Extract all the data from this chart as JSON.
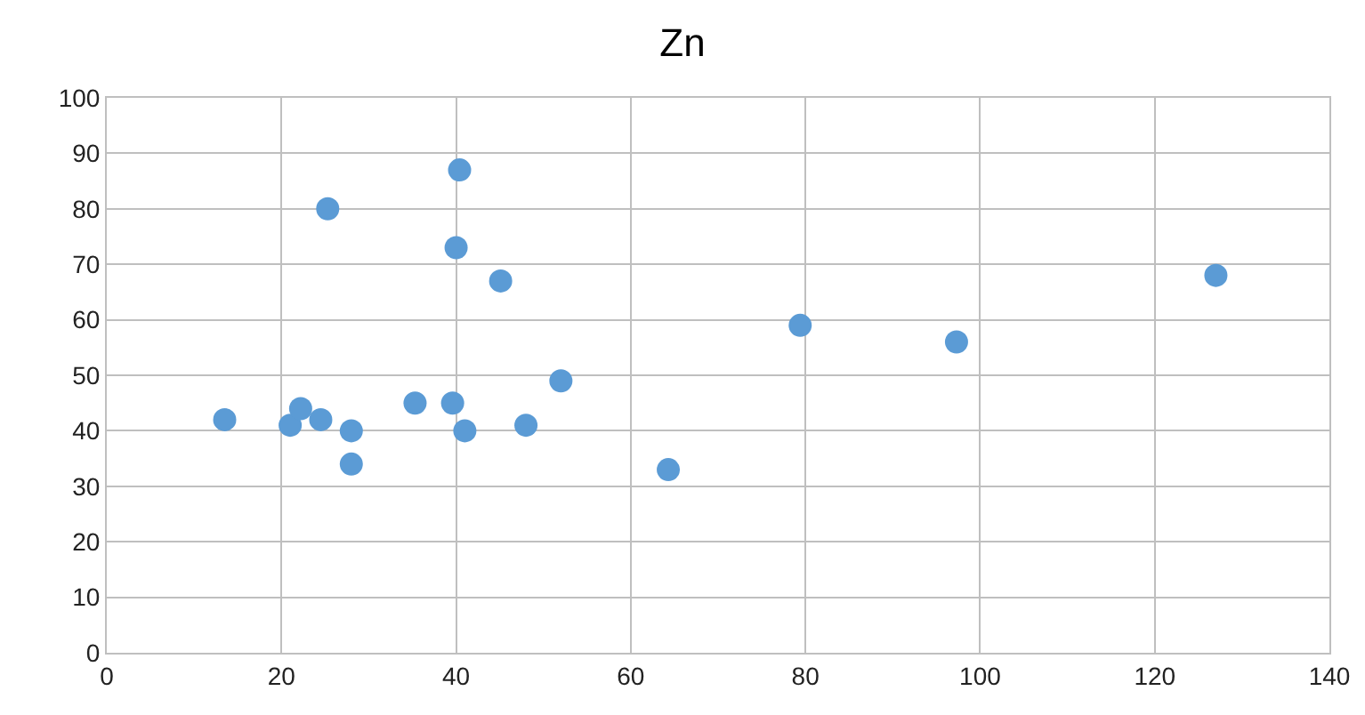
{
  "chart_data": {
    "type": "scatter",
    "title": "Zn",
    "x": [
      13.5,
      21,
      22.2,
      24.5,
      25.3,
      28,
      28,
      35.3,
      39.6,
      40.4,
      40,
      41,
      45.1,
      48,
      52,
      64.3,
      79.4,
      97.3,
      127
    ],
    "values": [
      42,
      41,
      44,
      42,
      80,
      40,
      34,
      45,
      45,
      87,
      73,
      40,
      67,
      41,
      49,
      33,
      59,
      56,
      68
    ],
    "color": "#5b9bd5",
    "marker": "circle",
    "xlim": [
      0,
      140
    ],
    "xticks": [
      0,
      20,
      40,
      60,
      80,
      100,
      120,
      140
    ],
    "ylim": [
      0,
      100
    ],
    "yticks": [
      0,
      10,
      20,
      30,
      40,
      50,
      60,
      70,
      80,
      90,
      100
    ],
    "grid": true
  }
}
